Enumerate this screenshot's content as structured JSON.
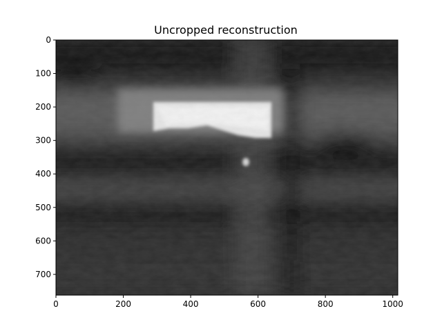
{
  "figure": {
    "title": "Uncropped reconstruction",
    "x_ticks": [
      "0",
      "200",
      "400",
      "600",
      "800",
      "1000"
    ],
    "y_ticks": [
      "0",
      "100",
      "200",
      "300",
      "400",
      "500",
      "600",
      "700"
    ]
  },
  "image": {
    "description_colormap": "gray",
    "width_units": 1015,
    "height_units": 762,
    "x_tick_values": [
      0,
      200,
      400,
      600,
      800,
      1000
    ],
    "y_tick_values": [
      0,
      100,
      200,
      300,
      400,
      500,
      600,
      700
    ]
  }
}
